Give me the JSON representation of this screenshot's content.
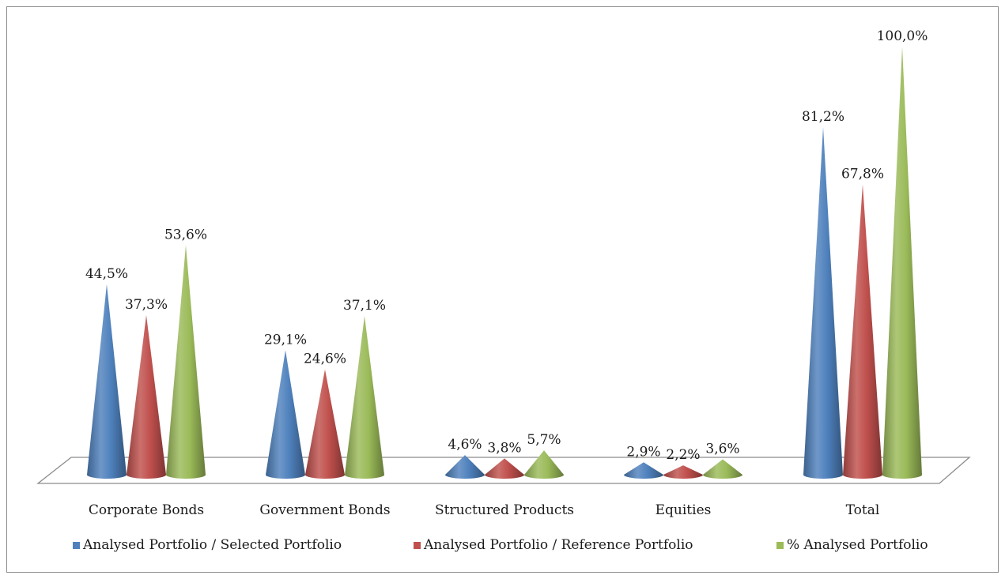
{
  "chart_data": {
    "type": "bar",
    "bar_shape": "cone",
    "categories": [
      "Corporate Bonds",
      "Government Bonds",
      "Structured Products",
      "Equities",
      "Total"
    ],
    "series": [
      {
        "name": "Analysed Portfolio / Selected Portfolio",
        "color": "#4f81bd",
        "values": [
          44.5,
          29.1,
          4.6,
          2.9,
          81.2
        ],
        "labels": [
          "44,5%",
          "29,1%",
          "4,6%",
          "2,9%",
          "81,2%"
        ]
      },
      {
        "name": "Analysed Portfolio / Reference Portfolio",
        "color": "#c0504d",
        "values": [
          37.3,
          24.6,
          3.8,
          2.2,
          67.8
        ],
        "labels": [
          "37,3%",
          "24,6%",
          "3,8%",
          "2,2%",
          "67,8%"
        ]
      },
      {
        "name": "% Analysed Portfolio",
        "color": "#9bbb59",
        "values": [
          53.6,
          37.1,
          5.7,
          3.6,
          100.0
        ],
        "labels": [
          "53,6%",
          "37,1%",
          "5,7%",
          "3,6%",
          "100,0%"
        ]
      }
    ],
    "ylim": [
      0,
      100
    ],
    "grid": false,
    "legend_position": "bottom"
  }
}
